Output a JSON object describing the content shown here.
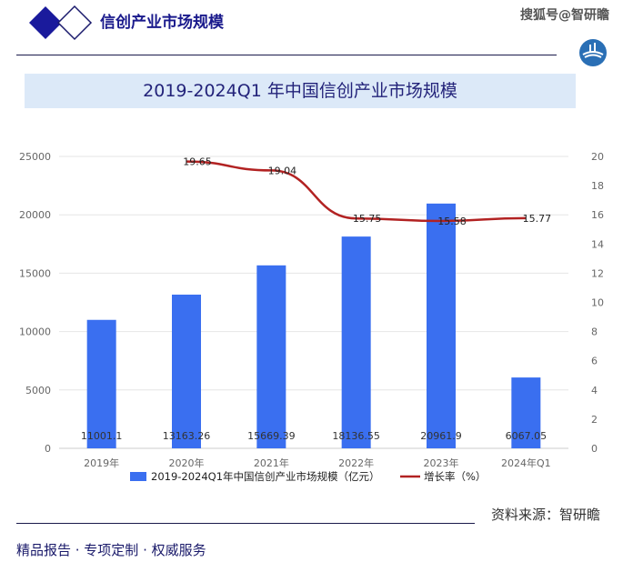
{
  "header": {
    "brand": "信创产业市场规模",
    "watermark": "搜狐号@智研瞻"
  },
  "title": "2019-2024Q1 年中国信创产业市场规模",
  "source": "资料来源：智研瞻",
  "footer": "精品报告 ·  专项定制 · 权威服务",
  "colors": {
    "bar": "#3a6ff0",
    "line": "#b22222",
    "brand": "#1a1a8c"
  },
  "chart_data": {
    "type": "bar+line",
    "categories": [
      "2019年",
      "2020年",
      "2021年",
      "2022年",
      "2023年",
      "2024年Q1"
    ],
    "series": [
      {
        "name": "2019-2024Q1年中国信创产业市场规模（亿元）",
        "type": "bar",
        "axis": "left",
        "values": [
          11001.1,
          13163.26,
          15669.39,
          18136.55,
          20961.9,
          6067.05
        ],
        "labels": [
          "11001.1",
          "13163.26",
          "15669.39",
          "18136.55",
          "20961.9",
          "6067.05"
        ]
      },
      {
        "name": "增长率（%）",
        "type": "line",
        "axis": "right",
        "values": [
          null,
          19.65,
          19.04,
          15.75,
          15.58,
          15.77
        ],
        "labels": [
          "",
          "19.65",
          "19.04",
          "15.75",
          "15.58",
          "15.77"
        ]
      }
    ],
    "ylim_left": [
      0,
      25000
    ],
    "yticks_left": [
      0,
      5000,
      10000,
      15000,
      20000,
      25000
    ],
    "ylim_right": [
      0,
      20
    ],
    "yticks_right": [
      0,
      2,
      4,
      6,
      8,
      10,
      12,
      14,
      16,
      18,
      20
    ],
    "grid": true,
    "legend": "bottom"
  }
}
